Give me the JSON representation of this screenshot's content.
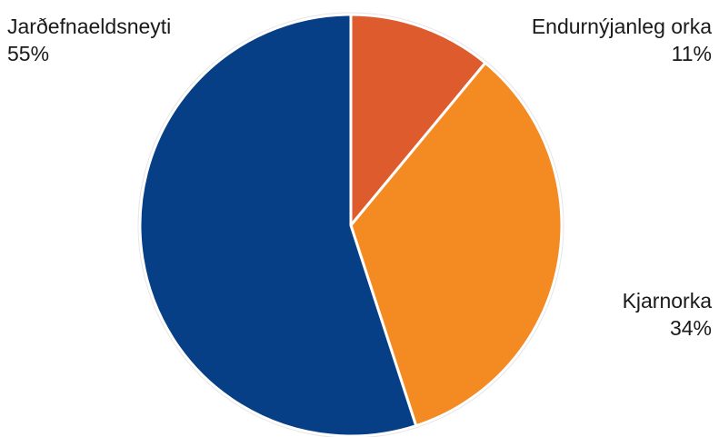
{
  "chart_data": {
    "type": "pie",
    "title": "",
    "start_angle_deg": 0,
    "direction": "clockwise",
    "slices": [
      {
        "label": "Endurnýjanleg orka",
        "value": 11,
        "value_label": "11%",
        "color": "#de5b2d"
      },
      {
        "label": "Kjarnorka",
        "value": 34,
        "value_label": "34%",
        "color": "#f48a22"
      },
      {
        "label": "Jarðefnaeldsneyti",
        "value": 55,
        "value_label": "55%",
        "color": "#063f86"
      }
    ],
    "slice_border_color": "#ffffff",
    "outer_border_color": "#e6e6e6"
  }
}
